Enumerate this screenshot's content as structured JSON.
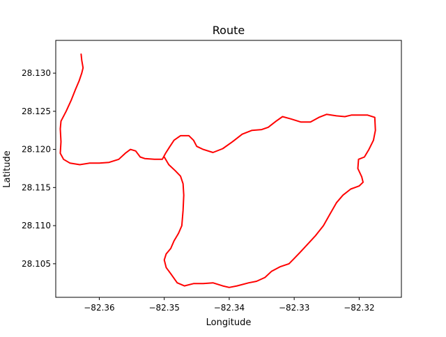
{
  "chart_data": {
    "type": "line",
    "title": "Route",
    "xlabel": "Longitude",
    "ylabel": "Latitude",
    "xlim": [
      -82.3667,
      -82.3135
    ],
    "ylim": [
      28.1006,
      28.1343
    ],
    "xticks": [
      -82.36,
      -82.35,
      -82.34,
      -82.33,
      -82.32
    ],
    "yticks": [
      28.105,
      28.11,
      28.115,
      28.12,
      28.125,
      28.13
    ],
    "xtick_labels": [
      "−82.36",
      "−82.35",
      "−82.34",
      "−82.33",
      "−82.32"
    ],
    "ytick_labels": [
      "28.105",
      "28.110",
      "28.115",
      "28.120",
      "28.125",
      "28.130"
    ],
    "grid": false,
    "series": [
      {
        "color": "#ff0000",
        "points": [
          [
            -82.3628,
            28.1325
          ],
          [
            -82.3627,
            28.1317
          ],
          [
            -82.3625,
            28.1307
          ],
          [
            -82.3627,
            28.13
          ],
          [
            -82.3631,
            28.129
          ],
          [
            -82.3637,
            28.1278
          ],
          [
            -82.3643,
            28.1265
          ],
          [
            -82.3651,
            28.125
          ],
          [
            -82.3659,
            28.1237
          ],
          [
            -82.366,
            28.1227
          ],
          [
            -82.3659,
            28.121
          ],
          [
            -82.366,
            28.1195
          ],
          [
            -82.3655,
            28.1187
          ],
          [
            -82.3645,
            28.1182
          ],
          [
            -82.363,
            28.118
          ],
          [
            -82.3615,
            28.1182
          ],
          [
            -82.36,
            28.1182
          ],
          [
            -82.3585,
            28.1183
          ],
          [
            -82.357,
            28.1187
          ],
          [
            -82.356,
            28.1195
          ],
          [
            -82.3552,
            28.12
          ],
          [
            -82.3544,
            28.1198
          ],
          [
            -82.3537,
            28.119
          ],
          [
            -82.353,
            28.1188
          ],
          [
            -82.3515,
            28.1187
          ],
          [
            -82.3503,
            28.1187
          ],
          [
            -82.3498,
            28.1195
          ],
          [
            -82.3492,
            28.1203
          ],
          [
            -82.3485,
            28.1212
          ],
          [
            -82.3475,
            28.1218
          ],
          [
            -82.3462,
            28.1218
          ],
          [
            -82.3455,
            28.1212
          ],
          [
            -82.345,
            28.1204
          ],
          [
            -82.344,
            28.12
          ],
          [
            -82.3425,
            28.1196
          ],
          [
            -82.341,
            28.1201
          ],
          [
            -82.3395,
            28.121
          ],
          [
            -82.338,
            28.122
          ],
          [
            -82.3365,
            28.1225
          ],
          [
            -82.335,
            28.1226
          ],
          [
            -82.334,
            28.1229
          ],
          [
            -82.3328,
            28.1237
          ],
          [
            -82.3318,
            28.1243
          ],
          [
            -82.3305,
            28.124
          ],
          [
            -82.329,
            28.1236
          ],
          [
            -82.3275,
            28.1236
          ],
          [
            -82.3262,
            28.1242
          ],
          [
            -82.325,
            28.1246
          ],
          [
            -82.3235,
            28.1244
          ],
          [
            -82.3222,
            28.1243
          ],
          [
            -82.3212,
            28.1245
          ],
          [
            -82.32,
            28.1245
          ],
          [
            -82.3187,
            28.1245
          ],
          [
            -82.3176,
            28.1242
          ],
          [
            -82.3175,
            28.1225
          ],
          [
            -82.3178,
            28.1212
          ],
          [
            -82.3185,
            28.12
          ],
          [
            -82.3192,
            28.119
          ],
          [
            -82.3201,
            28.1187
          ],
          [
            -82.3202,
            28.1175
          ],
          [
            -82.3196,
            28.1164
          ],
          [
            -82.3194,
            28.1157
          ],
          [
            -82.32,
            28.1152
          ],
          [
            -82.3213,
            28.1148
          ],
          [
            -82.3225,
            28.114
          ],
          [
            -82.3235,
            28.113
          ],
          [
            -82.3245,
            28.1115
          ],
          [
            -82.3255,
            28.11
          ],
          [
            -82.3267,
            28.1087
          ],
          [
            -82.328,
            28.1075
          ],
          [
            -82.3291,
            28.1065
          ],
          [
            -82.33,
            28.1057
          ],
          [
            -82.3308,
            28.105
          ],
          [
            -82.3322,
            28.1046
          ],
          [
            -82.3335,
            28.104
          ],
          [
            -82.3345,
            28.1032
          ],
          [
            -82.3358,
            28.1027
          ],
          [
            -82.337,
            28.1025
          ],
          [
            -82.3388,
            28.1021
          ],
          [
            -82.34,
            28.1019
          ],
          [
            -82.341,
            28.1021
          ],
          [
            -82.3425,
            28.1025
          ],
          [
            -82.344,
            28.1024
          ],
          [
            -82.3455,
            28.1024
          ],
          [
            -82.3469,
            28.1021
          ],
          [
            -82.348,
            28.1025
          ],
          [
            -82.349,
            28.1037
          ],
          [
            -82.3497,
            28.1045
          ],
          [
            -82.35,
            28.1055
          ],
          [
            -82.3497,
            28.1063
          ],
          [
            -82.349,
            28.107
          ],
          [
            -82.3485,
            28.108
          ],
          [
            -82.3478,
            28.109
          ],
          [
            -82.3473,
            28.11
          ],
          [
            -82.3471,
            28.112
          ],
          [
            -82.347,
            28.114
          ],
          [
            -82.3471,
            28.1155
          ],
          [
            -82.3475,
            28.1165
          ],
          [
            -82.3483,
            28.1172
          ],
          [
            -82.3493,
            28.118
          ],
          [
            -82.35,
            28.119
          ]
        ]
      }
    ]
  }
}
